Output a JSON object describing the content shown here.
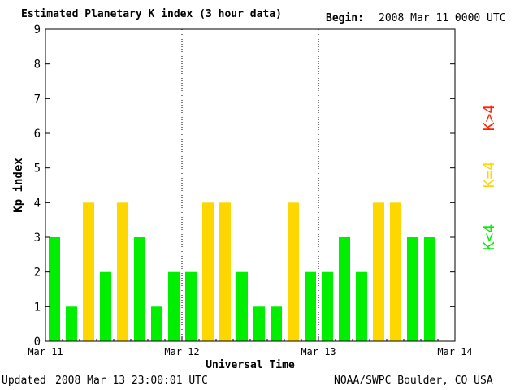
{
  "header": {
    "title": "Estimated Planetary K index (3 hour data)",
    "begin_label": "Begin:",
    "begin_value": "2008 Mar 11 0000 UTC"
  },
  "footer": {
    "updated_label": "Updated",
    "updated_value": "2008 Mar 13 23:00:01 UTC",
    "source": "NOAA/SWPC Boulder, CO USA"
  },
  "legend": [
    {
      "label": "K<4",
      "color": "#00ee00"
    },
    {
      "label": "K=4",
      "color": "#ffd700"
    },
    {
      "label": "K>4",
      "color": "#ff2200"
    }
  ],
  "colors": {
    "low": "#00ee00",
    "mid": "#ffd700",
    "high": "#ff2200"
  },
  "chart_data": {
    "type": "bar",
    "title": "Estimated Planetary K index (3 hour data)",
    "xlabel": "Universal Time",
    "ylabel": "Kp index",
    "ylim": [
      0,
      9
    ],
    "yticks": [
      0,
      1,
      2,
      3,
      4,
      5,
      6,
      7,
      8,
      9
    ],
    "xtick_labels": [
      "Mar 11",
      "Mar 12",
      "Mar 13",
      "Mar 14"
    ],
    "interval_hours": 3,
    "day_separators": [
      "Mar 12",
      "Mar 13"
    ],
    "categories": [
      "Mar 11 00",
      "Mar 11 03",
      "Mar 11 06",
      "Mar 11 09",
      "Mar 11 12",
      "Mar 11 15",
      "Mar 11 18",
      "Mar 11 21",
      "Mar 12 00",
      "Mar 12 03",
      "Mar 12 06",
      "Mar 12 09",
      "Mar 12 12",
      "Mar 12 15",
      "Mar 12 18",
      "Mar 12 21",
      "Mar 13 00",
      "Mar 13 03",
      "Mar 13 06",
      "Mar 13 09",
      "Mar 13 12",
      "Mar 13 15",
      "Mar 13 18",
      "Mar 13 21"
    ],
    "values": [
      3,
      1,
      4,
      2,
      4,
      3,
      1,
      2,
      2,
      4,
      4,
      2,
      1,
      1,
      4,
      2,
      2,
      3,
      2,
      4,
      4,
      3,
      3,
      0
    ]
  }
}
